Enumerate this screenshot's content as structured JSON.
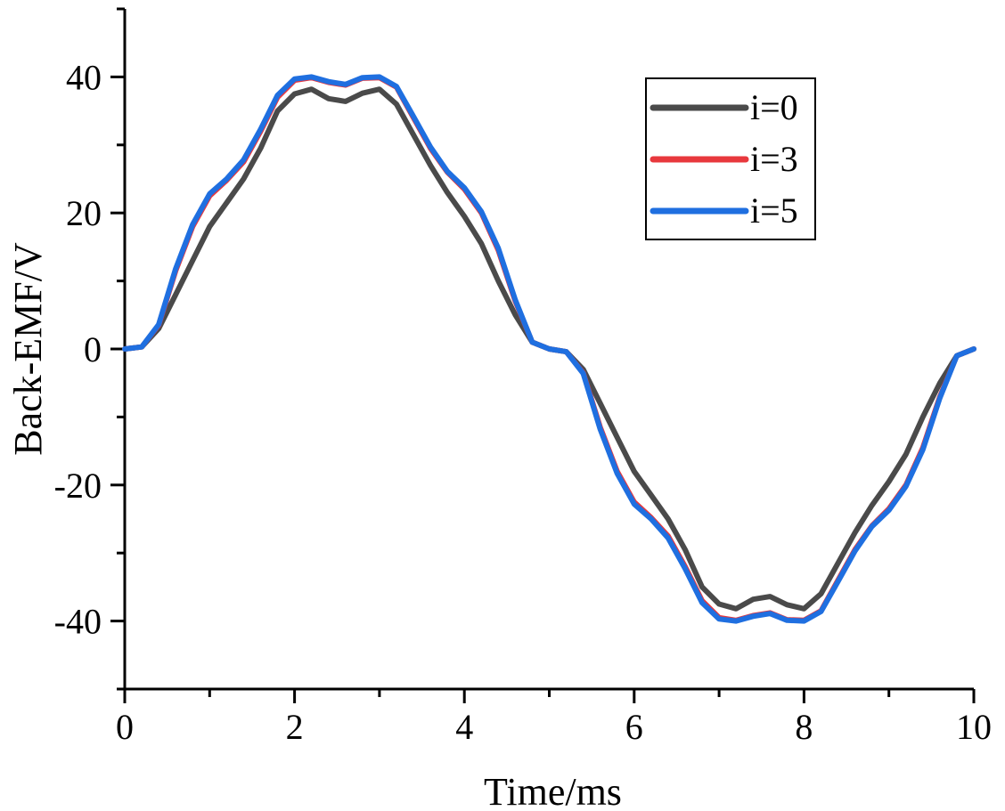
{
  "chart_data": {
    "type": "line",
    "title": "",
    "xlabel": "Time/ms",
    "ylabel": "Back-EMF/V",
    "xlim": [
      0,
      10
    ],
    "ylim": [
      -50,
      50
    ],
    "x_ticks": [
      0,
      2,
      4,
      6,
      8,
      10
    ],
    "y_ticks": [
      40,
      20,
      0,
      -20,
      -40
    ],
    "x_tick_labels": [
      "0",
      "2",
      "4",
      "6",
      "8",
      "10"
    ],
    "y_tick_labels": [
      "40",
      "20",
      "0",
      "-20",
      "-40"
    ],
    "grid": false,
    "legend_position": "top-right",
    "x": [
      0,
      0.2,
      0.4,
      0.6,
      0.8,
      1.0,
      1.2,
      1.4,
      1.6,
      1.8,
      2.0,
      2.2,
      2.4,
      2.6,
      2.8,
      3.0,
      3.2,
      3.4,
      3.6,
      3.8,
      4.0,
      4.2,
      4.4,
      4.6,
      4.8,
      5.0,
      5.2,
      5.4,
      5.6,
      5.8,
      6.0,
      6.2,
      6.4,
      6.6,
      6.8,
      7.0,
      7.2,
      7.4,
      7.6,
      7.8,
      8.0,
      8.2,
      8.4,
      8.6,
      8.8,
      9.0,
      9.2,
      9.4,
      9.6,
      9.8,
      10.0
    ],
    "series": [
      {
        "name": "i=0",
        "color": "#4a4a4a",
        "values": [
          0,
          0.3,
          3,
          8,
          13,
          18,
          21.5,
          25,
          29.5,
          35,
          37.5,
          38.2,
          36.8,
          36.4,
          37.6,
          38.2,
          36,
          31.5,
          27,
          23,
          19.5,
          15.5,
          10,
          5,
          1,
          0,
          -0.4,
          -3,
          -8,
          -13,
          -18,
          -21.5,
          -25,
          -29.5,
          -35,
          -37.5,
          -38.2,
          -36.8,
          -36.4,
          -37.6,
          -38.2,
          -36,
          -31.5,
          -27,
          -23,
          -19.5,
          -15.5,
          -10,
          -5,
          -1,
          0
        ]
      },
      {
        "name": "i=3",
        "color": "#e8383d",
        "values": [
          0,
          0.3,
          3.5,
          11.5,
          18,
          22.5,
          24.8,
          27.5,
          32,
          37,
          39.5,
          39.9,
          39.2,
          38.8,
          39.8,
          39.9,
          38.5,
          34,
          29.5,
          26,
          23.5,
          20,
          14.5,
          7,
          1,
          0,
          -0.4,
          -3.5,
          -11.5,
          -18,
          -22.5,
          -24.8,
          -27.5,
          -32,
          -37,
          -39.5,
          -39.9,
          -39.2,
          -38.8,
          -39.8,
          -39.9,
          -38.5,
          -34,
          -29.5,
          -26,
          -23.5,
          -20,
          -14.5,
          -7,
          -1,
          0
        ]
      },
      {
        "name": "i=5",
        "color": "#1f6fe0",
        "values": [
          0,
          0.3,
          3.6,
          11.8,
          18.3,
          22.8,
          25,
          27.8,
          32.3,
          37.3,
          39.7,
          40,
          39.3,
          38.9,
          39.9,
          40,
          38.6,
          34.2,
          29.7,
          26.1,
          23.7,
          20.2,
          14.8,
          7.2,
          1,
          0,
          -0.4,
          -3.6,
          -11.8,
          -18.3,
          -22.8,
          -25,
          -27.8,
          -32.3,
          -37.3,
          -39.7,
          -40,
          -39.3,
          -38.9,
          -39.9,
          -40,
          -38.6,
          -34.2,
          -29.7,
          -26.1,
          -23.7,
          -20.2,
          -14.8,
          -7.2,
          -1,
          0
        ]
      }
    ]
  }
}
